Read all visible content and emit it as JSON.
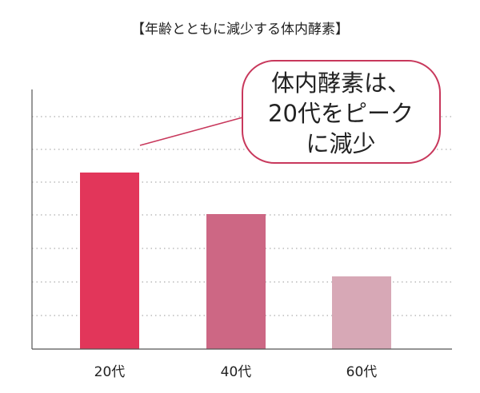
{
  "chart_data": {
    "type": "bar",
    "title": "【年齢とともに減少する体内酵素】",
    "categories": [
      "20代",
      "40代",
      "60代"
    ],
    "values": [
      68,
      52,
      28
    ],
    "ylim": [
      0,
      100
    ],
    "grid": true,
    "xlabel": "",
    "ylabel": "",
    "annotation": {
      "lines": [
        "体内酵素は、",
        "20代をピーク",
        "に減少"
      ],
      "points_to": "20代"
    },
    "colors": [
      "#e2365a",
      "#cd6784",
      "#d7a8b6"
    ]
  }
}
